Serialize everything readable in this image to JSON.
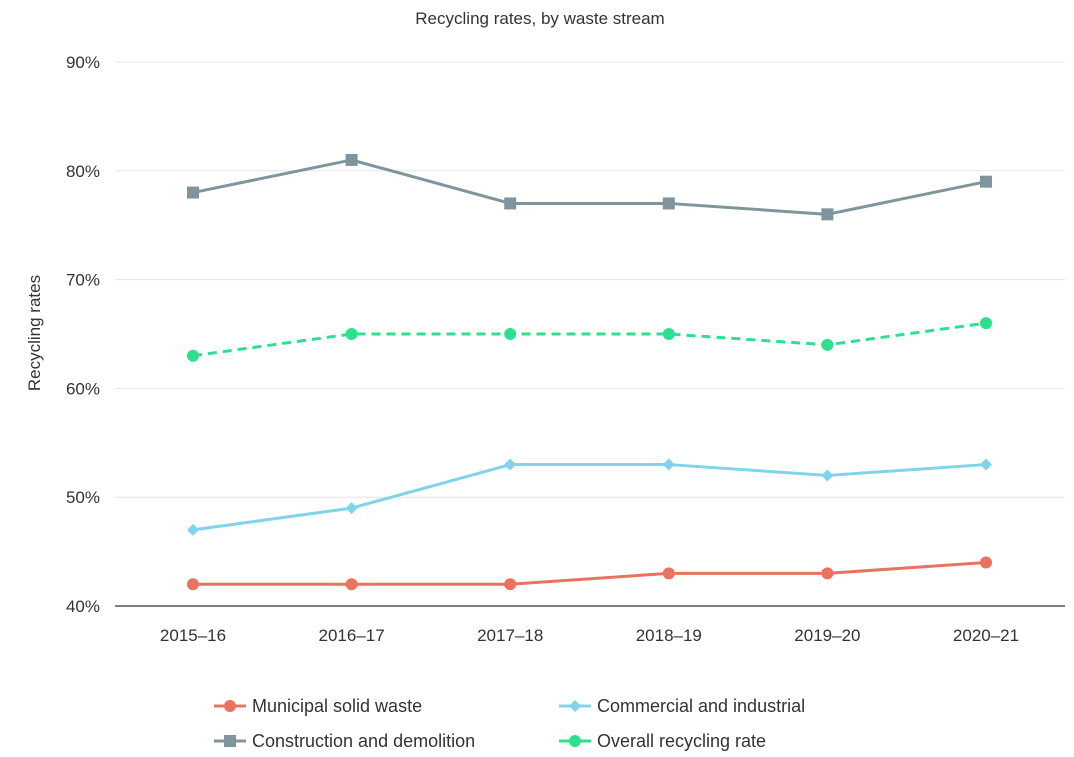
{
  "chart_data": {
    "type": "line",
    "title": "Recycling rates, by waste stream",
    "xlabel": "",
    "ylabel": "Recycling rates",
    "categories": [
      "2015–16",
      "2016–17",
      "2017–18",
      "2018–19",
      "2019–20",
      "2020–21"
    ],
    "ylim": [
      40,
      90
    ],
    "yticks": [
      40,
      50,
      60,
      70,
      80,
      90
    ],
    "ytick_labels": [
      "40%",
      "50%",
      "60%",
      "70%",
      "80%",
      "90%"
    ],
    "grid": true,
    "legend_position": "bottom",
    "series": [
      {
        "name": "Municipal solid waste",
        "values": [
          42,
          42,
          42,
          43,
          43,
          44
        ],
        "color": "#e8735e",
        "marker": "circle",
        "dashed": false
      },
      {
        "name": "Commercial and industrial",
        "values": [
          47,
          49,
          53,
          53,
          52,
          53
        ],
        "color": "#7fd3ea",
        "marker": "diamond",
        "dashed": false
      },
      {
        "name": "Construction and demolition",
        "values": [
          78,
          81,
          77,
          77,
          76,
          79
        ],
        "color": "#7f959c",
        "marker": "square",
        "dashed": false
      },
      {
        "name": "Overall recycling rate",
        "values": [
          63,
          65,
          65,
          65,
          64,
          66
        ],
        "color": "#2de08e",
        "marker": "circle",
        "dashed": true
      }
    ]
  }
}
